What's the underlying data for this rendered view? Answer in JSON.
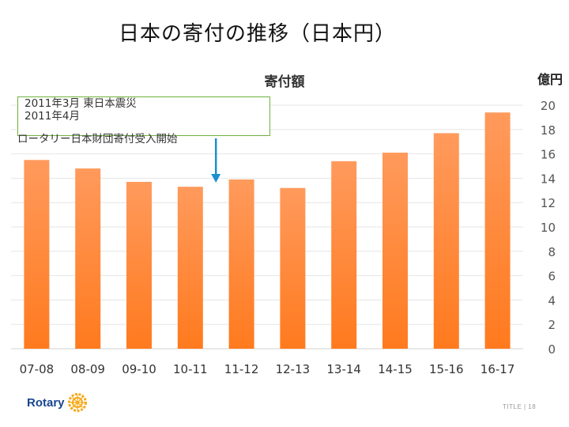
{
  "slide": {
    "title": "日本の寄付の推移（日本円）",
    "annotation": {
      "line1": "2011年3月 東日本震災",
      "line2": "2011年4月",
      "line3": "ロータリー日本財団寄付受入開始"
    },
    "logo_text": "Rotary",
    "page_label": "TITLE  |  18"
  },
  "colors": {
    "bar_top": "#FF9A5C",
    "bar_bottom": "#FF7A1E",
    "annotation_border": "#6FB23D",
    "arrow": "#1E8FCC"
  },
  "chart_data": {
    "type": "bar",
    "title": "寄付額",
    "ylabel": "億円",
    "categories": [
      "07-08",
      "08-09",
      "09-10",
      "10-11",
      "11-12",
      "12-13",
      "13-14",
      "14-15",
      "15-16",
      "16-17"
    ],
    "values": [
      15.5,
      14.8,
      13.7,
      13.3,
      13.9,
      13.2,
      15.4,
      16.1,
      17.7,
      19.4
    ],
    "ylim": [
      0,
      20
    ],
    "yticks": [
      0,
      2,
      4,
      6,
      8,
      10,
      12,
      14,
      16,
      18,
      20
    ],
    "ytick_labels": [
      "0",
      "2",
      "4",
      "6",
      "8",
      "10",
      "12",
      "14",
      "16",
      "18",
      "20"
    ],
    "grid": true,
    "y_axis_side": "right",
    "arrow_at_category": "10-11"
  }
}
